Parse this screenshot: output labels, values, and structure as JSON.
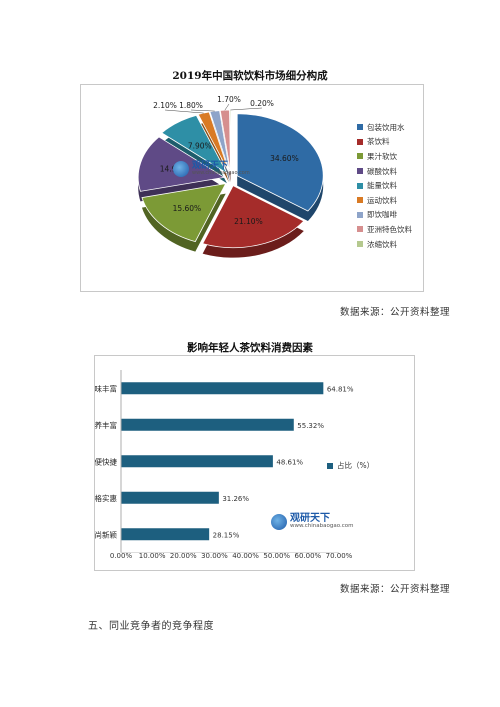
{
  "chart1": {
    "title": "2019年中国软饮料市场细分构成",
    "source": "数据来源：公开资料整理",
    "watermark": {
      "name": "观研天下",
      "url": "www.chinabaogao.com"
    },
    "chart_data": {
      "type": "pie",
      "title": "2019年中国软饮料市场细分构成",
      "categories": [
        "包装饮用水",
        "茶饮料",
        "果汁软饮",
        "碳酸饮料",
        "能量饮料",
        "运动饮料",
        "即饮咖啡",
        "亚洲特色饮料",
        "浓缩饮料"
      ],
      "values": [
        34.6,
        21.1,
        15.6,
        14.9,
        7.9,
        2.1,
        1.8,
        1.7,
        0.2
      ],
      "labels": [
        "34.60%",
        "21.10%",
        "15.60%",
        "14.90%",
        "7.90%",
        "2.10%",
        "1.80%",
        "1.70%",
        "0.20%"
      ],
      "colors": [
        "#2f6ba5",
        "#a52c2a",
        "#7c9a36",
        "#5f4a86",
        "#2e8fa6",
        "#d97a24",
        "#8ea4c9",
        "#d68f8f",
        "#b5c98f"
      ],
      "legend": "right"
    }
  },
  "chart2": {
    "title": "影响年轻人茶饮料消费因素",
    "source": "数据来源：公开资料整理",
    "watermark": {
      "name": "观研天下",
      "url": "www.chinabaogao.com"
    },
    "chart_data": {
      "type": "bar",
      "orientation": "horizontal",
      "title": "影响年轻人茶饮料消费因素",
      "categories": [
        "口味丰富",
        "营养丰富",
        "方便快捷",
        "价格实惠",
        "时尚新颖"
      ],
      "series": [
        {
          "name": "占比（%）",
          "values": [
            64.81,
            55.32,
            48.61,
            31.26,
            28.15
          ]
        }
      ],
      "labels": [
        "64.81%",
        "55.32%",
        "48.61%",
        "31.26%",
        "28.15%"
      ],
      "xticks": [
        "0.00%",
        "10.00%",
        "20.00%",
        "30.00%",
        "40.00%",
        "50.00%",
        "60.00%",
        "70.00%"
      ],
      "xlim": [
        0,
        70
      ],
      "color": "#1d5f7f",
      "legend": "right"
    }
  },
  "section_heading": "五、同业竞争者的竞争程度"
}
